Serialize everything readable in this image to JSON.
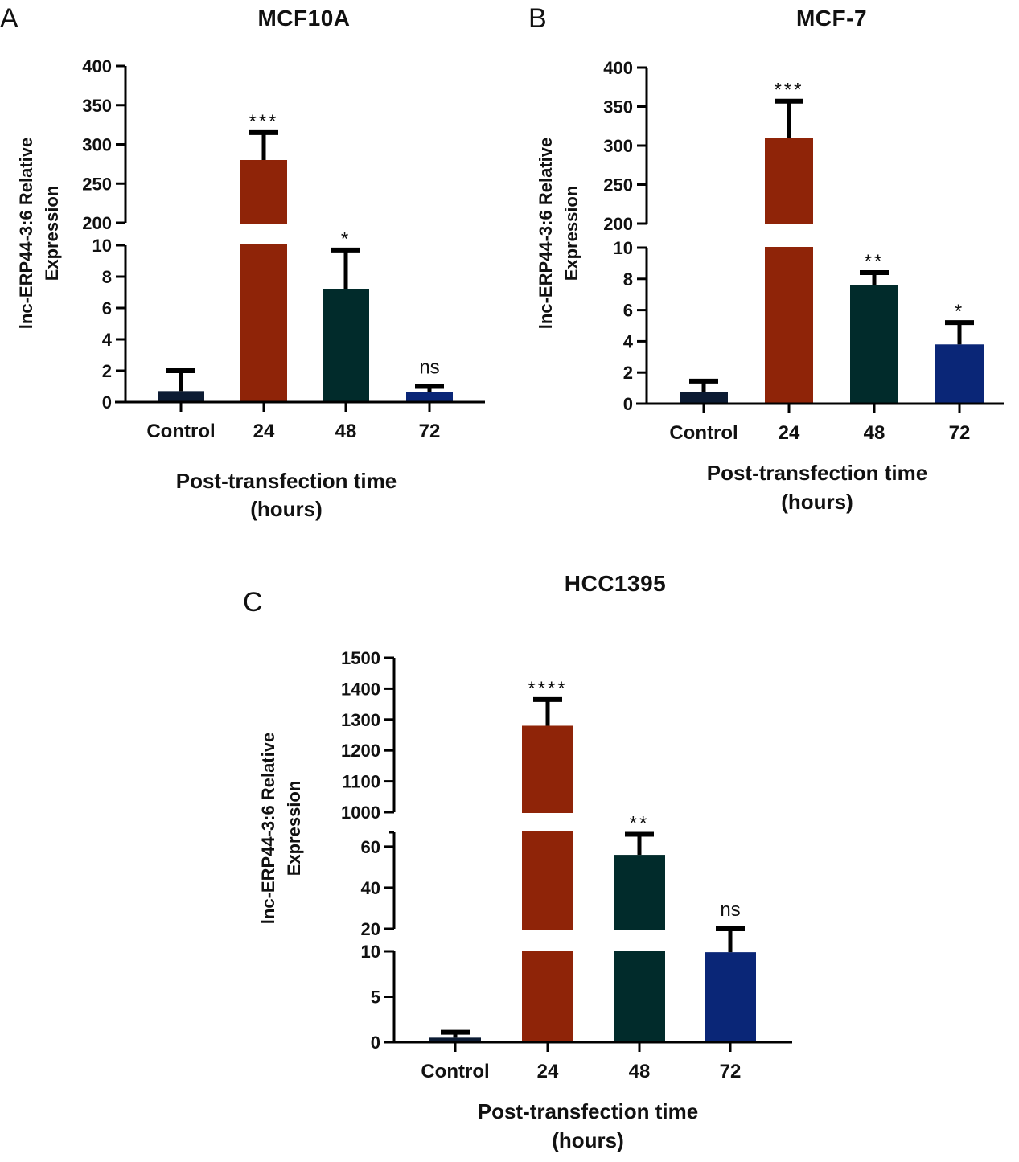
{
  "colors": {
    "Control": "#0c1b33",
    "24": "#8f2408",
    "48": "#012b2b",
    "72": "#0a2677",
    "axis": "#000000"
  },
  "chart_data": [
    {
      "id": "A",
      "type": "bar",
      "panel_label": "A",
      "title": "MCF10A",
      "categories": [
        "Control",
        "24",
        "48",
        "72"
      ],
      "values": [
        0.7,
        280,
        7.2,
        0.65
      ],
      "errors": [
        1.3,
        35,
        2.5,
        0.35
      ],
      "significance": [
        "",
        "***",
        "*",
        "ns"
      ],
      "xlabel_line1": "Post-transfection time",
      "xlabel_line2": "(hours)",
      "ylabel_line1": "lnc-ERP44-3:6 Relative",
      "ylabel_line2": "Expression",
      "segments": [
        {
          "range": [
            0,
            10
          ],
          "ticks": [
            "0",
            "2",
            "4",
            "6",
            "8",
            "10"
          ]
        },
        {
          "range": [
            200,
            400
          ],
          "ticks": [
            "200",
            "250",
            "300",
            "350",
            "400"
          ]
        }
      ]
    },
    {
      "id": "B",
      "type": "bar",
      "panel_label": "B",
      "title": "MCF-7",
      "categories": [
        "Control",
        "24",
        "48",
        "72"
      ],
      "values": [
        0.75,
        310,
        7.6,
        3.8
      ],
      "errors": [
        0.7,
        47,
        0.8,
        1.4
      ],
      "significance": [
        "",
        "***",
        "**",
        "*"
      ],
      "xlabel_line1": "Post-transfection time",
      "xlabel_line2": "(hours)",
      "ylabel_line1": "lnc-ERP44-3:6 Relative",
      "ylabel_line2": "Expression",
      "segments": [
        {
          "range": [
            0,
            10
          ],
          "ticks": [
            "0",
            "2",
            "4",
            "6",
            "8",
            "10"
          ]
        },
        {
          "range": [
            200,
            400
          ],
          "ticks": [
            "200",
            "250",
            "300",
            "350",
            "400"
          ]
        }
      ]
    },
    {
      "id": "C",
      "type": "bar",
      "panel_label": "C",
      "title": "HCC1395",
      "categories": [
        "Control",
        "24",
        "48",
        "72"
      ],
      "values": [
        0.5,
        1280,
        56,
        9.9
      ],
      "errors": [
        0.6,
        85,
        10,
        0.7
      ],
      "significance": [
        "",
        "****",
        "**",
        "ns"
      ],
      "xlabel_line1": "Post-transfection time",
      "xlabel_line2": "(hours)",
      "ylabel_line1": "lnc-ERP44-3:6 Relative",
      "ylabel_line2": "Expression",
      "segments": [
        {
          "range": [
            0,
            10
          ],
          "ticks": [
            "0",
            "5",
            "10"
          ]
        },
        {
          "range": [
            20,
            67
          ],
          "ticks": [
            "20",
            "40",
            "60"
          ]
        },
        {
          "range": [
            1000,
            1500
          ],
          "ticks": [
            "1000",
            "1100",
            "1200",
            "1300",
            "1400",
            "1500"
          ]
        }
      ]
    }
  ]
}
